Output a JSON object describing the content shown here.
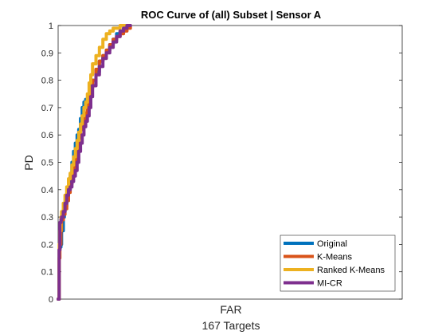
{
  "chart_data": {
    "type": "line",
    "title": "ROC Curve of (all) Subset | Sensor A",
    "xlabel": "FAR",
    "xlabel_sub": "167 Targets",
    "ylabel": "PD",
    "xlim": [
      0,
      1
    ],
    "ylim": [
      0,
      1
    ],
    "yticks": [
      "0",
      "0.1",
      "0.2",
      "0.3",
      "0.4",
      "0.5",
      "0.6",
      "0.7",
      "0.8",
      "0.9",
      "1"
    ],
    "grid": false,
    "legend_position": "bottom-right",
    "series": [
      {
        "name": "Original",
        "color": "#0072BD",
        "x": [
          0,
          0.003,
          0.005,
          0.008,
          0.01,
          0.015,
          0.018,
          0.02,
          0.025,
          0.03,
          0.035,
          0.04,
          0.045,
          0.05,
          0.055,
          0.06,
          0.065,
          0.07,
          0.075,
          0.08,
          0.085,
          0.09,
          0.095,
          0.1,
          0.11,
          0.12,
          0.13,
          0.14,
          0.15,
          0.16,
          0.17,
          0.18,
          0.19,
          0.2,
          0.21
        ],
        "y": [
          0,
          0.18,
          0.19,
          0.2,
          0.25,
          0.3,
          0.32,
          0.34,
          0.36,
          0.4,
          0.45,
          0.5,
          0.54,
          0.57,
          0.6,
          0.62,
          0.66,
          0.7,
          0.72,
          0.73,
          0.73,
          0.75,
          0.78,
          0.8,
          0.83,
          0.87,
          0.89,
          0.91,
          0.93,
          0.95,
          0.97,
          0.98,
          0.99,
          1.0,
          1.0
        ]
      },
      {
        "name": "K-Means",
        "color": "#D95319",
        "x": [
          0,
          0.003,
          0.005,
          0.008,
          0.01,
          0.015,
          0.02,
          0.025,
          0.03,
          0.035,
          0.04,
          0.045,
          0.05,
          0.055,
          0.06,
          0.065,
          0.07,
          0.075,
          0.08,
          0.085,
          0.09,
          0.095,
          0.1,
          0.11,
          0.12,
          0.13,
          0.14,
          0.15,
          0.16,
          0.17,
          0.18,
          0.19,
          0.2,
          0.21
        ],
        "y": [
          0,
          0.15,
          0.2,
          0.25,
          0.29,
          0.31,
          0.33,
          0.36,
          0.39,
          0.42,
          0.45,
          0.48,
          0.51,
          0.55,
          0.59,
          0.62,
          0.64,
          0.66,
          0.68,
          0.71,
          0.74,
          0.77,
          0.8,
          0.84,
          0.87,
          0.89,
          0.91,
          0.93,
          0.95,
          0.96,
          0.97,
          0.98,
          0.99,
          1.0
        ]
      },
      {
        "name": "Ranked K-Means",
        "color": "#EDB120",
        "x": [
          0,
          0.003,
          0.005,
          0.008,
          0.01,
          0.015,
          0.02,
          0.025,
          0.03,
          0.035,
          0.04,
          0.045,
          0.05,
          0.055,
          0.06,
          0.065,
          0.07,
          0.075,
          0.08,
          0.085,
          0.09,
          0.095,
          0.1,
          0.11,
          0.12,
          0.13,
          0.14,
          0.15,
          0.16,
          0.17,
          0.18,
          0.19,
          0.2
        ],
        "y": [
          0,
          0.2,
          0.25,
          0.3,
          0.32,
          0.35,
          0.38,
          0.41,
          0.44,
          0.46,
          0.49,
          0.52,
          0.55,
          0.58,
          0.61,
          0.64,
          0.67,
          0.7,
          0.72,
          0.75,
          0.79,
          0.82,
          0.86,
          0.89,
          0.92,
          0.95,
          0.97,
          0.98,
          0.99,
          0.99,
          1.0,
          1.0,
          1.0
        ]
      },
      {
        "name": "MI-CR",
        "color": "#7E2F8E",
        "x": [
          0,
          0.003,
          0.005,
          0.008,
          0.01,
          0.015,
          0.02,
          0.025,
          0.03,
          0.035,
          0.04,
          0.045,
          0.05,
          0.055,
          0.06,
          0.065,
          0.07,
          0.075,
          0.08,
          0.085,
          0.09,
          0.095,
          0.1,
          0.11,
          0.12,
          0.13,
          0.14,
          0.15,
          0.16,
          0.17,
          0.18,
          0.19,
          0.2,
          0.21
        ],
        "y": [
          0,
          0.18,
          0.28,
          0.29,
          0.3,
          0.32,
          0.35,
          0.38,
          0.4,
          0.41,
          0.43,
          0.45,
          0.47,
          0.5,
          0.54,
          0.57,
          0.6,
          0.63,
          0.65,
          0.67,
          0.7,
          0.74,
          0.78,
          0.82,
          0.85,
          0.88,
          0.9,
          0.92,
          0.94,
          0.96,
          0.98,
          0.99,
          1.0,
          1.0
        ]
      }
    ]
  }
}
